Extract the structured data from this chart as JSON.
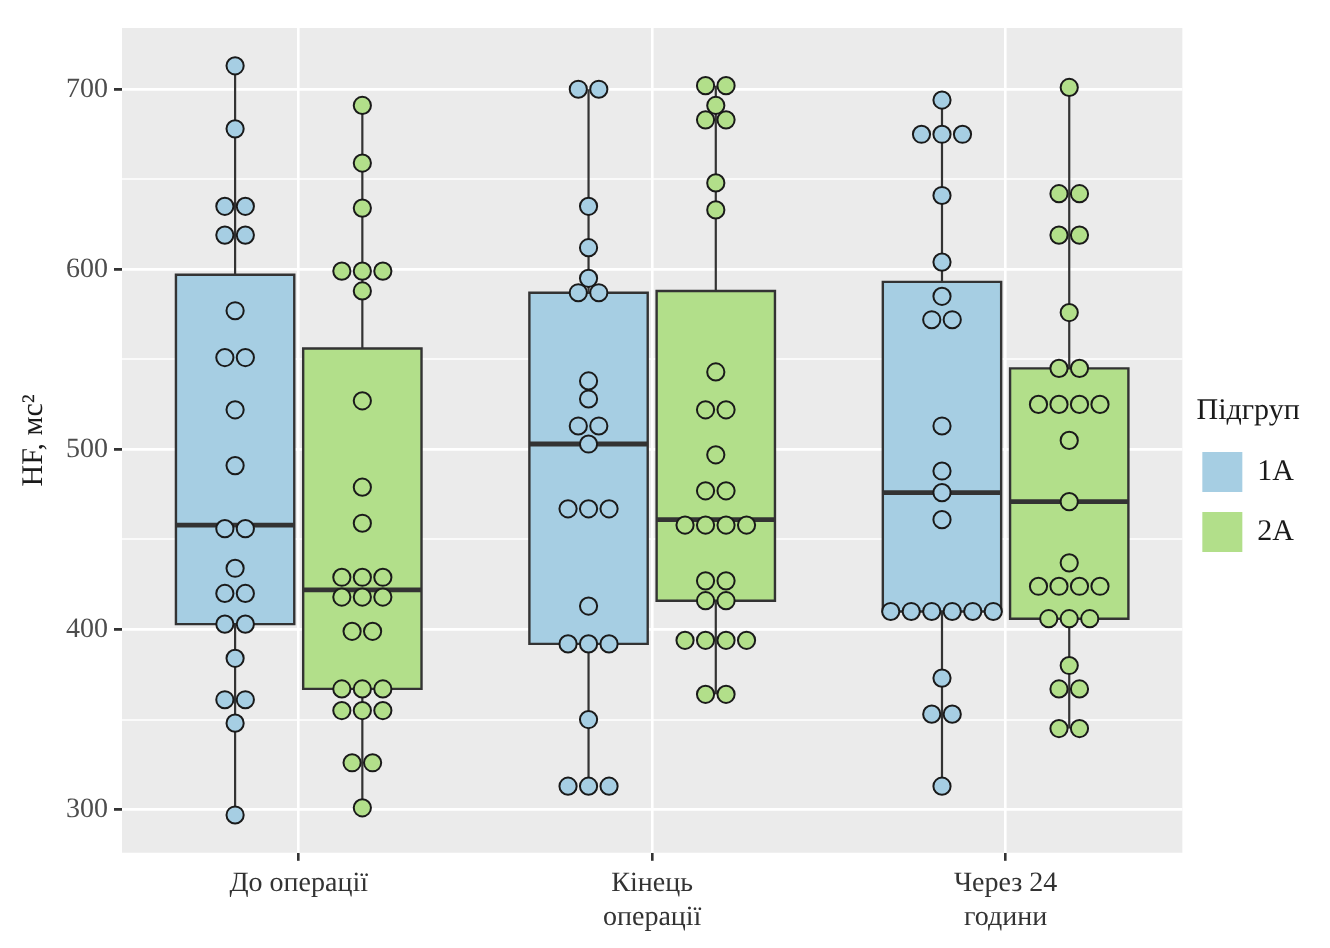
{
  "chart_data": {
    "type": "box",
    "ylabel": "HF, мс²",
    "legend_title": "Підгруп",
    "legend": "right",
    "grid": true,
    "marker": "circle",
    "categories": [
      "До операції",
      "Кінець операції",
      "Через 24 години"
    ],
    "ylim": [
      276,
      734
    ],
    "yticks": [
      {
        "value": 300,
        "label": "300"
      },
      {
        "value": 350,
        "label": null
      },
      {
        "value": 400,
        "label": "400"
      },
      {
        "value": 450,
        "label": null
      },
      {
        "value": 500,
        "label": "500"
      },
      {
        "value": 550,
        "label": null
      },
      {
        "value": 600,
        "label": "600"
      },
      {
        "value": 650,
        "label": null
      },
      {
        "value": 700,
        "label": "700"
      }
    ],
    "series": [
      {
        "name": "1A",
        "type": "box",
        "color": "#a6cee3",
        "boxes": [
          {
            "low": 297,
            "q1": 403,
            "median": 458,
            "q3": 597,
            "high": 713
          },
          {
            "low": 313,
            "q1": 392,
            "median": 503,
            "q3": 587,
            "high": 700
          },
          {
            "low": 313,
            "q1": 410,
            "median": 476,
            "q3": 593,
            "high": 694
          }
        ]
      },
      {
        "name": "2A",
        "type": "box",
        "color": "#b2df8a",
        "boxes": [
          {
            "low": 301,
            "q1": 367,
            "median": 422,
            "q3": 556,
            "high": 691
          },
          {
            "low": 364,
            "q1": 416,
            "median": 461,
            "q3": 588,
            "high": 702
          },
          {
            "low": 345,
            "q1": 406,
            "median": 471,
            "q3": 545,
            "high": 701
          }
        ]
      },
      {
        "type": "scatter",
        "color": "#a6cee3",
        "x": [
          "До операції",
          "До операції",
          "До операції",
          "До операції",
          "До операції",
          "До операції",
          "До операції",
          "До операції",
          "До операції",
          "До операції",
          "До операції",
          "До операції",
          "До операції",
          "До операції",
          "До операції",
          "До операції",
          "До операції",
          "До операції",
          "До операції",
          "До операції",
          "До операції",
          "До операції",
          "До операції",
          "Кінець операції",
          "Кінець операції",
          "Кінець операції",
          "Кінець операції",
          "Кінець операції",
          "Кінець операції",
          "Кінець операції",
          "Кінець операції",
          "Кінець операції",
          "Кінець операції",
          "Кінець операції",
          "Кінець операції",
          "Кінець операції",
          "Кінець операції",
          "Кінець операції",
          "Кінець операції",
          "Кінець операції",
          "Кінець операції",
          "Кінець операції",
          "Кінець операції",
          "Кінець операції",
          "Кінець операції",
          "Кінець операції",
          "Через 24 години",
          "Через 24 години",
          "Через 24 години",
          "Через 24 години",
          "Через 24 години",
          "Через 24 години",
          "Через 24 години",
          "Через 24 години",
          "Через 24 години",
          "Через 24 години",
          "Через 24 години",
          "Через 24 години",
          "Через 24 години",
          "Через 24 години",
          "Через 24 години",
          "Через 24 години",
          "Через 24 години",
          "Через 24 години",
          "Через 24 години",
          "Через 24 години",
          "Через 24 години",
          "Через 24 години",
          "Через 24 години"
        ],
        "values": [
          713,
          678,
          635,
          635,
          619,
          619,
          577,
          551,
          551,
          522,
          491,
          456,
          456,
          434,
          420,
          420,
          403,
          403,
          384,
          361,
          361,
          348,
          297,
          700,
          700,
          635,
          612,
          595,
          587,
          587,
          538,
          528,
          513,
          513,
          503,
          467,
          467,
          467,
          413,
          392,
          392,
          392,
          350,
          313,
          313,
          313,
          694,
          675,
          675,
          675,
          641,
          604,
          585,
          572,
          572,
          513,
          488,
          476,
          461,
          410,
          410,
          410,
          410,
          410,
          410,
          373,
          353,
          353,
          313
        ]
      },
      {
        "type": "scatter",
        "color": "#b2df8a",
        "x": [
          "До операції",
          "До операції",
          "До операції",
          "До операції",
          "До операції",
          "До операції",
          "До операції",
          "До операції",
          "До операції",
          "До операції",
          "До операції",
          "До операції",
          "До операції",
          "До операції",
          "До операції",
          "До операції",
          "До операції",
          "До операції",
          "До операції",
          "До операції",
          "До операції",
          "До операції",
          "До операції",
          "До операції",
          "До операції",
          "До операції",
          "До операції",
          "Кінець операції",
          "Кінець операції",
          "Кінець операції",
          "Кінець операції",
          "Кінець операції",
          "Кінець операції",
          "Кінець операції",
          "Кінець операції",
          "Кінець операції",
          "Кінець операції",
          "Кінець операції",
          "Кінець операції",
          "Кінець операції",
          "Кінець операції",
          "Кінець операції",
          "Кінець операції",
          "Кінець операції",
          "Кінець операції",
          "Кінець операції",
          "Кінець операції",
          "Кінець операції",
          "Кінець операції",
          "Кінець операції",
          "Кінець операції",
          "Кінець операції",
          "Кінець операції",
          "Кінець операції",
          "Через 24 години",
          "Через 24 години",
          "Через 24 години",
          "Через 24 години",
          "Через 24 години",
          "Через 24 години",
          "Через 24 години",
          "Через 24 години",
          "Через 24 години",
          "Через 24 години",
          "Через 24 години",
          "Через 24 години",
          "Через 24 години",
          "Через 24 години",
          "Через 24 години",
          "Через 24 години",
          "Через 24 години",
          "Через 24 години",
          "Через 24 години",
          "Через 24 години",
          "Через 24 години",
          "Через 24 години",
          "Через 24 години",
          "Через 24 години",
          "Через 24 години",
          "Через 24 години",
          "Через 24 години"
        ],
        "values": [
          691,
          659,
          634,
          599,
          599,
          599,
          588,
          527,
          479,
          459,
          429,
          429,
          429,
          418,
          418,
          418,
          399,
          399,
          367,
          367,
          367,
          355,
          355,
          355,
          326,
          326,
          301,
          702,
          702,
          691,
          683,
          683,
          648,
          633,
          543,
          522,
          522,
          497,
          477,
          477,
          458,
          458,
          458,
          458,
          427,
          427,
          416,
          416,
          394,
          394,
          394,
          394,
          364,
          364,
          701,
          642,
          642,
          619,
          619,
          576,
          545,
          545,
          525,
          525,
          525,
          525,
          505,
          471,
          437,
          424,
          424,
          424,
          424,
          406,
          406,
          406,
          380,
          367,
          367,
          345,
          345
        ]
      }
    ]
  }
}
